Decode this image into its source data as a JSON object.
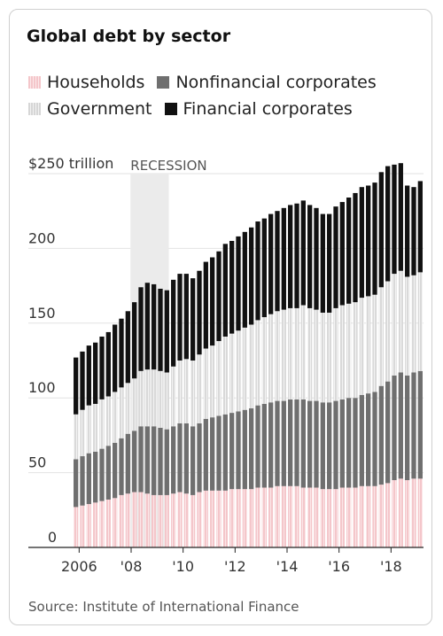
{
  "chart_data": {
    "type": "bar",
    "stacked": true,
    "title": "Global debt by sector",
    "ylabel": "",
    "xlabel": "",
    "unit_label": "$250 trillion",
    "ylim": [
      0,
      250
    ],
    "yticks": [
      0,
      50,
      100,
      150,
      200,
      250
    ],
    "ytick_labels": [
      "0",
      "50",
      "100",
      "150",
      "200",
      "$250 trillion"
    ],
    "xticks": [
      2006,
      2008,
      2010,
      2012,
      2014,
      2016,
      2018
    ],
    "xtick_labels": [
      "2006",
      "'08",
      "'10",
      "'12",
      "'14",
      "'16",
      "'18"
    ],
    "grid": true,
    "legend_position": "top",
    "annotation": {
      "label": "RECESSION",
      "x_start": "2008 Q1",
      "x_end": "2009 Q2"
    },
    "categories": [
      "2005 Q4",
      "2006 Q1",
      "2006 Q2",
      "2006 Q3",
      "2006 Q4",
      "2007 Q1",
      "2007 Q2",
      "2007 Q3",
      "2007 Q4",
      "2008 Q1",
      "2008 Q2",
      "2008 Q3",
      "2008 Q4",
      "2009 Q1",
      "2009 Q2",
      "2009 Q3",
      "2009 Q4",
      "2010 Q1",
      "2010 Q2",
      "2010 Q3",
      "2010 Q4",
      "2011 Q1",
      "2011 Q2",
      "2011 Q3",
      "2011 Q4",
      "2012 Q1",
      "2012 Q2",
      "2012 Q3",
      "2012 Q4",
      "2013 Q1",
      "2013 Q2",
      "2013 Q3",
      "2013 Q4",
      "2014 Q1",
      "2014 Q2",
      "2014 Q3",
      "2014 Q4",
      "2015 Q1",
      "2015 Q2",
      "2015 Q3",
      "2015 Q4",
      "2016 Q1",
      "2016 Q2",
      "2016 Q3",
      "2016 Q4",
      "2017 Q1",
      "2017 Q2",
      "2017 Q3",
      "2017 Q4",
      "2018 Q1",
      "2018 Q2",
      "2018 Q3",
      "2018 Q4",
      "2019 Q1"
    ],
    "series": [
      {
        "name": "Households",
        "color": "#f4c6ca",
        "pattern": "striped",
        "values": [
          27,
          28,
          29,
          30,
          31,
          32,
          33,
          35,
          36,
          37,
          37,
          36,
          35,
          35,
          35,
          36,
          37,
          36,
          35,
          37,
          38,
          38,
          38,
          38,
          39,
          39,
          39,
          39,
          40,
          40,
          40,
          41,
          41,
          41,
          41,
          40,
          40,
          40,
          39,
          39,
          39,
          40,
          40,
          40,
          41,
          41,
          41,
          42,
          43,
          45,
          46,
          45,
          46,
          46
        ]
      },
      {
        "name": "Nonfinancial corporates",
        "color": "#6f6f6f",
        "pattern": "solid",
        "values": [
          32,
          33,
          34,
          34,
          35,
          36,
          37,
          38,
          40,
          41,
          44,
          45,
          46,
          45,
          44,
          45,
          46,
          47,
          46,
          46,
          48,
          49,
          50,
          51,
          51,
          52,
          53,
          54,
          55,
          56,
          57,
          57,
          57,
          58,
          58,
          59,
          58,
          58,
          58,
          58,
          59,
          59,
          60,
          60,
          61,
          62,
          63,
          66,
          68,
          70,
          71,
          70,
          71,
          72
        ]
      },
      {
        "name": "Government",
        "color": "#dcdcdc",
        "pattern": "striped",
        "values": [
          30,
          31,
          32,
          32,
          33,
          33,
          34,
          34,
          34,
          35,
          37,
          38,
          38,
          38,
          38,
          40,
          42,
          43,
          44,
          46,
          47,
          48,
          50,
          52,
          53,
          54,
          55,
          56,
          57,
          58,
          59,
          60,
          61,
          61,
          61,
          63,
          62,
          61,
          60,
          60,
          62,
          63,
          63,
          64,
          65,
          65,
          65,
          66,
          67,
          68,
          68,
          66,
          65,
          66
        ]
      },
      {
        "name": "Financial corporates",
        "color": "#111111",
        "pattern": "solid",
        "values": [
          38,
          39,
          40,
          41,
          42,
          43,
          45,
          46,
          48,
          51,
          56,
          58,
          57,
          55,
          55,
          58,
          58,
          57,
          55,
          56,
          58,
          59,
          60,
          62,
          62,
          63,
          64,
          65,
          66,
          66,
          67,
          67,
          68,
          69,
          70,
          70,
          69,
          68,
          66,
          66,
          68,
          69,
          71,
          73,
          74,
          74,
          75,
          77,
          77,
          73,
          72,
          61,
          59,
          61
        ]
      }
    ]
  },
  "source": "Source: Institute of International Finance"
}
